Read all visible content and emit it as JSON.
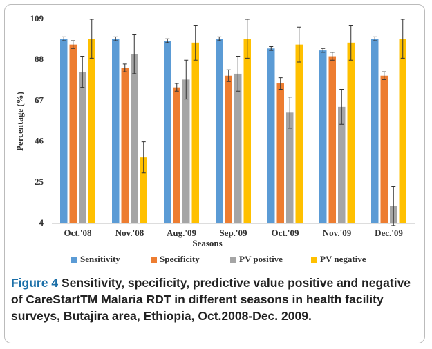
{
  "chart_data": {
    "type": "bar",
    "x_label": "Seasons",
    "y_label": "Percentage (%)",
    "categories": [
      "Oct.'08",
      "Nov.'08",
      "Aug.'09",
      "Sep.'09",
      "Oct.'09",
      "Nov.'09",
      "Dec.'09"
    ],
    "series": [
      {
        "name": "Sensitivity",
        "color": "#5b9bd5",
        "values": [
          99,
          99,
          98,
          99,
          94,
          93,
          99
        ],
        "errors": [
          1,
          1,
          1,
          1,
          1,
          1,
          1
        ]
      },
      {
        "name": "Specificity",
        "color": "#ed7d31",
        "values": [
          96,
          84,
          74,
          80,
          76,
          90,
          80
        ],
        "errors": [
          2,
          2,
          2,
          3,
          3,
          2,
          2
        ]
      },
      {
        "name": "PV positive",
        "color": "#a5a5a5",
        "values": [
          82,
          91,
          78,
          81,
          61,
          64,
          13
        ],
        "errors": [
          8,
          10,
          10,
          9,
          8,
          9,
          10
        ]
      },
      {
        "name": "PV negative",
        "color": "#ffc000",
        "values": [
          99,
          38,
          97,
          99,
          96,
          97,
          99
        ],
        "errors": [
          10,
          8,
          9,
          10,
          9,
          9,
          10
        ]
      }
    ],
    "ylim": [
      4,
      109
    ],
    "yticks": [
      4,
      25,
      46,
      67,
      88,
      109
    ],
    "grid": false,
    "legend": "bottom"
  },
  "caption": {
    "label": "Figure 4",
    "text": "Sensitivity, specificity, predictive value positive and negative of CareStartTM Malaria RDT in different seasons in health facility surveys, Butajira area, Ethiopia, Oct.2008-Dec. 2009."
  }
}
